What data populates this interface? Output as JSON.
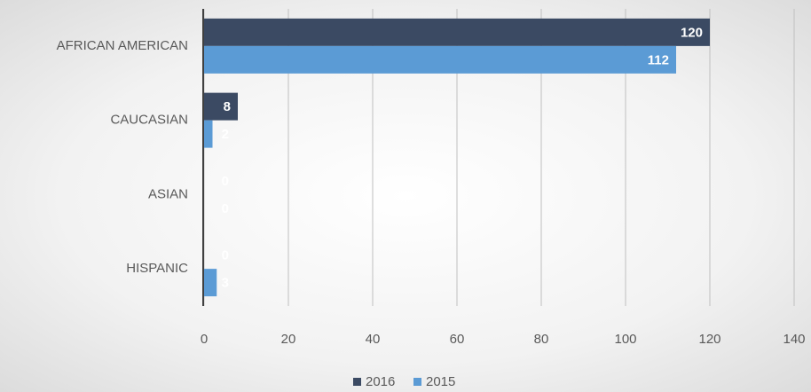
{
  "chart_data": {
    "type": "bar",
    "orientation": "horizontal",
    "categories": [
      "AFRICAN AMERICAN",
      "CAUCASIAN",
      "ASIAN",
      "HISPANIC"
    ],
    "series": [
      {
        "name": "2016",
        "color": "#3b4a63",
        "values": [
          120,
          8,
          0,
          0
        ]
      },
      {
        "name": "2015",
        "color": "#5b9bd5",
        "values": [
          112,
          2,
          0,
          3
        ]
      }
    ],
    "xlim": [
      0,
      140
    ],
    "xticks": [
      0,
      20,
      40,
      60,
      80,
      100,
      120,
      140
    ],
    "grid": true,
    "data_labels": true,
    "legend": "bottom"
  }
}
